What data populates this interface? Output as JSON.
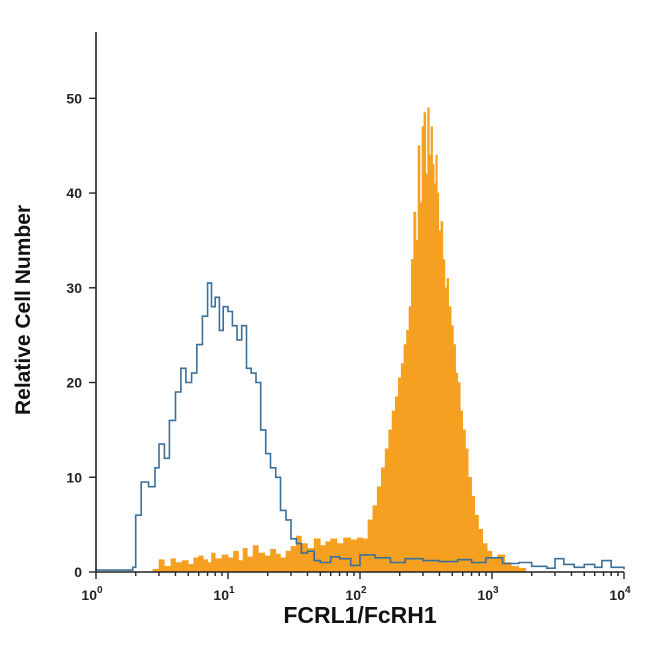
{
  "chart_data": {
    "type": "histogram",
    "title": "",
    "xlabel": "FCRL1/FcRH1",
    "ylabel": "Relative Cell Number",
    "x_scale": "log",
    "xlim": [
      1,
      10000
    ],
    "ylim": [
      0,
      57
    ],
    "x_ticks": [
      {
        "value": 1,
        "base": "10",
        "exp": "0"
      },
      {
        "value": 10,
        "base": "10",
        "exp": "1"
      },
      {
        "value": 100,
        "base": "10",
        "exp": "2"
      },
      {
        "value": 1000,
        "base": "10",
        "exp": "3"
      },
      {
        "value": 10000,
        "base": "10",
        "exp": "4"
      }
    ],
    "y_ticks": [
      0,
      10,
      20,
      30,
      40,
      50
    ],
    "grid": false,
    "legend": "none",
    "series": [
      {
        "style": "outline",
        "color": "#3a6f9a",
        "x": [
          1.0,
          1.9,
          2.0,
          2.2,
          2.5,
          2.8,
          3.0,
          3.3,
          3.6,
          4.0,
          4.4,
          4.8,
          5.3,
          5.8,
          6.4,
          7.0,
          7.5,
          8.0,
          8.6,
          9.2,
          10.0,
          10.8,
          11.7,
          12.7,
          13.8,
          15.0,
          16.3,
          17.7,
          19.3,
          21.0,
          23.0,
          25.0,
          27.5,
          30.0,
          33.0,
          36.0,
          40.0,
          45.0,
          50.0,
          60.0,
          70.0,
          85.0,
          100.0,
          130.0,
          170.0,
          220.0,
          300.0,
          400.0,
          550.0,
          700.0,
          900.0,
          1200.0,
          1600.0,
          2000.0,
          2600.0,
          3000.0,
          3500.0,
          4200.0,
          5000.0,
          6000.0,
          6800.0,
          8000.0,
          10000.0
        ],
        "y": [
          0.2,
          0.5,
          6.0,
          9.5,
          9.0,
          11.0,
          13.5,
          12.0,
          16.0,
          19.0,
          21.5,
          20.0,
          21.0,
          24.0,
          27.0,
          30.5,
          28.0,
          29.0,
          25.5,
          28.0,
          27.5,
          26.0,
          24.5,
          26.0,
          21.5,
          21.0,
          20.0,
          15.0,
          12.5,
          11.0,
          10.0,
          6.5,
          5.5,
          3.5,
          3.0,
          2.0,
          2.2,
          1.2,
          1.0,
          1.6,
          1.4,
          0.7,
          1.8,
          1.5,
          1.0,
          1.4,
          1.2,
          1.1,
          1.3,
          1.0,
          1.5,
          0.9,
          1.0,
          0.6,
          0.4,
          1.4,
          0.8,
          0.5,
          0.8,
          0.5,
          1.2,
          0.5,
          0.3
        ]
      },
      {
        "style": "filled",
        "color": "#f5a020",
        "x": [
          2.7,
          3.0,
          3.3,
          3.7,
          4.0,
          4.5,
          5.0,
          5.5,
          6.0,
          6.5,
          7.0,
          7.5,
          8.0,
          9.0,
          10.0,
          11.0,
          12.0,
          13.0,
          14.0,
          15.5,
          17.0,
          19.0,
          21.0,
          23.0,
          25.0,
          27.5,
          30.0,
          33.0,
          36.0,
          40.0,
          45.0,
          50.0,
          55.0,
          60.0,
          67.0,
          75.0,
          85.0,
          95.0,
          105.0,
          115.0,
          125.0,
          135.0,
          145.0,
          155.0,
          165.0,
          175.0,
          185.0,
          195.0,
          205.0,
          215.0,
          225.0,
          235.0,
          245.0,
          255.0,
          265.0,
          275.0,
          285.0,
          295.0,
          305.0,
          315.0,
          325.0,
          335.0,
          345.0,
          355.0,
          365.0,
          375.0,
          385.0,
          395.0,
          410.0,
          425.0,
          440.0,
          455.0,
          470.0,
          490.0,
          510.0,
          530.0,
          550.0,
          575.0,
          600.0,
          630.0,
          660.0,
          700.0,
          740.0,
          790.0,
          850.0,
          920.0,
          1000.0,
          1100.0,
          1250.0,
          1400.0,
          1600.0,
          1800.0
        ],
        "y": [
          0.3,
          1.3,
          0.6,
          1.4,
          1.0,
          1.2,
          0.8,
          1.5,
          1.7,
          1.3,
          1.0,
          2.0,
          1.4,
          1.8,
          1.5,
          2.2,
          1.2,
          2.5,
          1.6,
          2.8,
          2.0,
          1.7,
          2.4,
          1.9,
          1.5,
          2.2,
          2.7,
          3.8,
          3.0,
          2.5,
          3.5,
          2.8,
          3.2,
          3.5,
          3.0,
          3.6,
          3.4,
          3.6,
          3.5,
          5.5,
          7.0,
          9.0,
          11.0,
          13.0,
          15.0,
          17.0,
          18.5,
          20.5,
          22.0,
          24.0,
          25.5,
          28.0,
          33.0,
          38.0,
          35.0,
          45.0,
          39.0,
          47.0,
          48.5,
          42.0,
          49.0,
          44.0,
          47.0,
          43.0,
          41.0,
          44.0,
          40.0,
          36.0,
          37.0,
          33.0,
          30.0,
          31.0,
          28.0,
          26.0,
          24.0,
          21.0,
          20.0,
          17.0,
          15.0,
          13.0,
          10.0,
          8.0,
          6.0,
          4.5,
          3.0,
          2.2,
          1.5,
          1.8,
          1.0,
          0.6,
          0.4,
          0.2
        ]
      }
    ]
  }
}
